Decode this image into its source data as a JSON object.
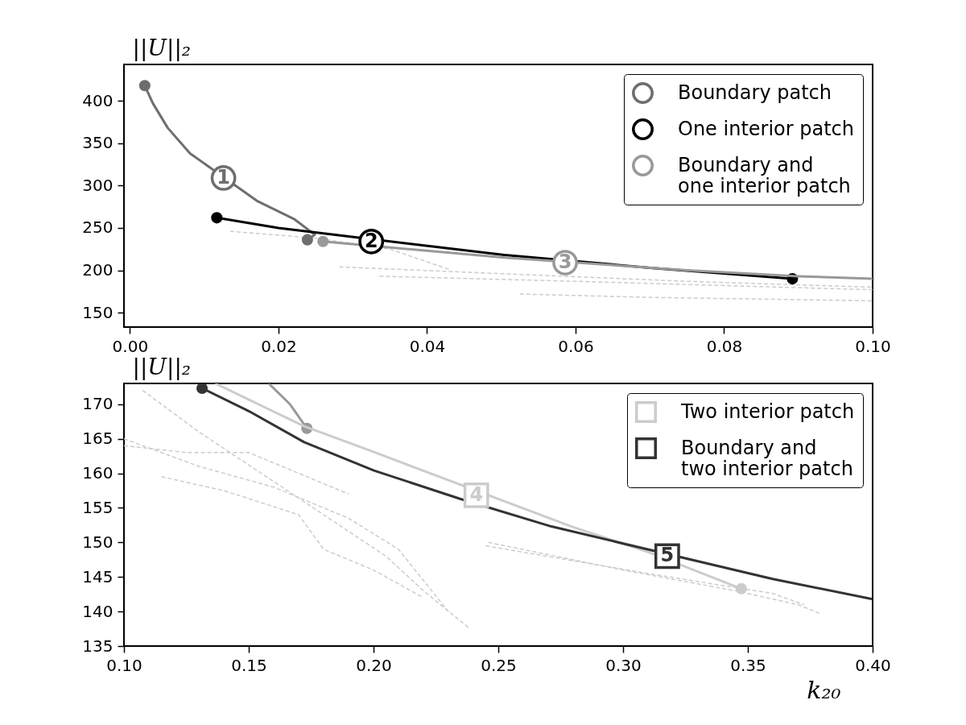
{
  "chart_data": [
    {
      "type": "line",
      "ylabel": "||U||₂",
      "xlim": [
        -0.0008,
        0.1
      ],
      "ylim": [
        133,
        443
      ],
      "xticks": [
        {
          "value": 0,
          "label": "0.00"
        },
        {
          "value": 0.02,
          "label": "0.02"
        },
        {
          "value": 0.04,
          "label": "0.04"
        },
        {
          "value": 0.06,
          "label": "0.06"
        },
        {
          "value": 0.08,
          "label": "0.08"
        },
        {
          "value": 0.1,
          "label": "0.10"
        }
      ],
      "yticks": [
        150,
        200,
        250,
        300,
        350,
        400
      ],
      "grid": false,
      "legend": "top right",
      "series": [
        {
          "color": "#cccccc",
          "line_style": "dashed",
          "x": [
            0.0135,
            0.025,
            0.035,
            0.043
          ],
          "values": [
            246,
            238,
            225,
            201
          ]
        },
        {
          "color": "#cccccc",
          "line_style": "dashed",
          "x": [
            0.0282,
            0.05,
            0.075,
            0.1
          ],
          "values": [
            204,
            196,
            187,
            180
          ]
        },
        {
          "color": "#cccccc",
          "line_style": "dashed",
          "x": [
            0.0336,
            0.06,
            0.08,
            0.1
          ],
          "values": [
            193,
            187,
            182,
            177
          ]
        },
        {
          "color": "#cccccc",
          "line_style": "dashed",
          "x": [
            0.0525,
            0.07,
            0.085,
            0.1
          ],
          "values": [
            172,
            168,
            166,
            164
          ]
        },
        {
          "name": "Boundary patch",
          "color": "#6e6e6e",
          "x": [
            0.002,
            0.0031,
            0.0051,
            0.0081,
            0.0171,
            0.0222,
            0.0249,
            0.0239
          ],
          "values": [
            418,
            397,
            368,
            338,
            282,
            260,
            242,
            236
          ]
        },
        {
          "name": "One interior patch",
          "color": "#000000",
          "x": [
            0.0117,
            0.02,
            0.0504,
            0.07,
            0.0892
          ],
          "values": [
            262,
            250,
            218,
            203,
            190
          ]
        },
        {
          "name": "Boundary and\n one interior patch",
          "color": "#999999",
          "x": [
            0.026,
            0.04,
            0.0504,
            0.075,
            0.09,
            0.1
          ],
          "values": [
            234,
            223,
            215,
            200,
            193,
            190
          ]
        }
      ],
      "annotations": [
        {
          "text": "1",
          "x": 0.0126,
          "y": 309
        },
        {
          "text": "2",
          "x": 0.0325,
          "y": 234
        },
        {
          "text": "3",
          "x": 0.0586,
          "y": 209
        }
      ]
    },
    {
      "type": "line",
      "ylabel": "||U||₂",
      "xlabel": "k₂₀",
      "xlim": [
        0.1,
        0.4
      ],
      "ylim": [
        135,
        173
      ],
      "xticks": [
        {
          "value": 0.1,
          "label": "0.10"
        },
        {
          "value": 0.15,
          "label": "0.15"
        },
        {
          "value": 0.2,
          "label": "0.20"
        },
        {
          "value": 0.25,
          "label": "0.25"
        },
        {
          "value": 0.3,
          "label": "0.30"
        },
        {
          "value": 0.35,
          "label": "0.35"
        },
        {
          "value": 0.4,
          "label": "0.40"
        }
      ],
      "yticks": [
        135,
        140,
        145,
        150,
        155,
        160,
        165,
        170
      ],
      "grid": false,
      "legend": "top right",
      "series": [
        {
          "color": "#cccccc",
          "line_style": "dashed",
          "x": [
            0.1075,
            0.13,
            0.155,
            0.18,
            0.205,
            0.22,
            0.238
          ],
          "values": [
            172,
            166,
            160,
            154,
            148,
            143,
            137.7
          ]
        },
        {
          "color": "#cccccc",
          "line_style": "dashed",
          "x": [
            0.1,
            0.13,
            0.16,
            0.19,
            0.21,
            0.23
          ],
          "values": [
            165,
            161,
            158,
            153.5,
            149,
            140
          ]
        },
        {
          "color": "#cccccc",
          "line_style": "dashed",
          "x": [
            0.115,
            0.14,
            0.17,
            0.18,
            0.2,
            0.22
          ],
          "values": [
            159.5,
            157.5,
            154,
            149,
            146,
            142
          ]
        },
        {
          "color": "#cccccc",
          "line_style": "dashed",
          "x": [
            0.1,
            0.125,
            0.15,
            0.17,
            0.19
          ],
          "values": [
            164,
            163,
            163,
            160,
            157
          ]
        },
        {
          "color": "#cccccc",
          "line_style": "dashed",
          "x": [
            0.246,
            0.3,
            0.345,
            0.37,
            0.379
          ],
          "values": [
            150,
            146,
            143,
            141,
            139.7
          ]
        },
        {
          "color": "#cccccc",
          "line_style": "dashed",
          "x": [
            0.245,
            0.31,
            0.36,
            0.3725
          ],
          "values": [
            149.5,
            145.5,
            142.6,
            141
          ]
        },
        {
          "color": "#999999",
          "x": [
            0.158,
            0.1665,
            0.1733
          ],
          "values": [
            173,
            170,
            166.5
          ]
        },
        {
          "name": "Two interior patch",
          "color": "#cccccc",
          "x": [
            0.1366,
            0.1722,
            0.2,
            0.28,
            0.3101,
            0.3474
          ],
          "values": [
            173,
            166.8,
            163.1,
            152.2,
            148.6,
            143.3
          ]
        },
        {
          "name": "Boundary and\n two interior patch",
          "color": "#333333",
          "x": [
            0.1313,
            0.15,
            0.1722,
            0.2002,
            0.2347,
            0.2713,
            0.36,
            0.4
          ],
          "values": [
            172.3,
            169,
            164.5,
            160.4,
            156.3,
            152.3,
            144.7,
            141.8
          ]
        }
      ],
      "annotations": [
        {
          "text": "4",
          "x": 0.2412,
          "y": 156.8
        },
        {
          "text": "5",
          "x": 0.3177,
          "y": 148
        }
      ]
    }
  ]
}
